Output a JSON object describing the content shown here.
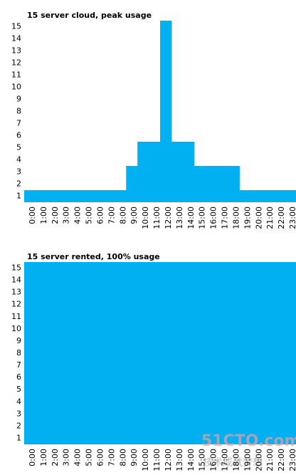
{
  "chart_data": [
    {
      "type": "bar",
      "title": "15 server cloud, peak usage",
      "categories": [
        "0:00",
        "1:00",
        "2:00",
        "3:00",
        "4:00",
        "5:00",
        "6:00",
        "7:00",
        "8:00",
        "9:00",
        "10:00",
        "11:00",
        "12:00",
        "13:00",
        "14:00",
        "15:00",
        "16:00",
        "17:00",
        "18:00",
        "19:00",
        "20:00",
        "21:00",
        "22:00",
        "23:00"
      ],
      "values": [
        1,
        1,
        1,
        1,
        1,
        1,
        1,
        1,
        1,
        3,
        5,
        5,
        15,
        5,
        5,
        3,
        3,
        3,
        3,
        1,
        1,
        1,
        1,
        1
      ],
      "color": "#00b0f0",
      "ylim": [
        0,
        15
      ],
      "yticks": [
        1,
        2,
        3,
        4,
        5,
        6,
        7,
        8,
        9,
        10,
        11,
        12,
        13,
        14,
        15
      ],
      "grid": false
    },
    {
      "type": "bar",
      "title": "15 server rented, 100% usage",
      "categories": [
        "0:00",
        "1:00",
        "2:00",
        "3:00",
        "4:00",
        "5:00",
        "6:00",
        "7:00",
        "8:00",
        "9:00",
        "10:00",
        "11:00",
        "12:00",
        "13:00",
        "14:00",
        "15:00",
        "16:00",
        "17:00",
        "18:00",
        "19:00",
        "20:00",
        "21:00",
        "22:00",
        "23:00"
      ],
      "values": [
        15,
        15,
        15,
        15,
        15,
        15,
        15,
        15,
        15,
        15,
        15,
        15,
        15,
        15,
        15,
        15,
        15,
        15,
        15,
        15,
        15,
        15,
        15,
        15
      ],
      "color": "#00b0f0",
      "ylim": [
        0,
        15
      ],
      "yticks": [
        1,
        2,
        3,
        4,
        5,
        6,
        7,
        8,
        9,
        10,
        11,
        12,
        13,
        14,
        15
      ],
      "grid": false
    }
  ],
  "watermark": {
    "site": "51CTO.com",
    "slogan": "技术成就梦想"
  }
}
